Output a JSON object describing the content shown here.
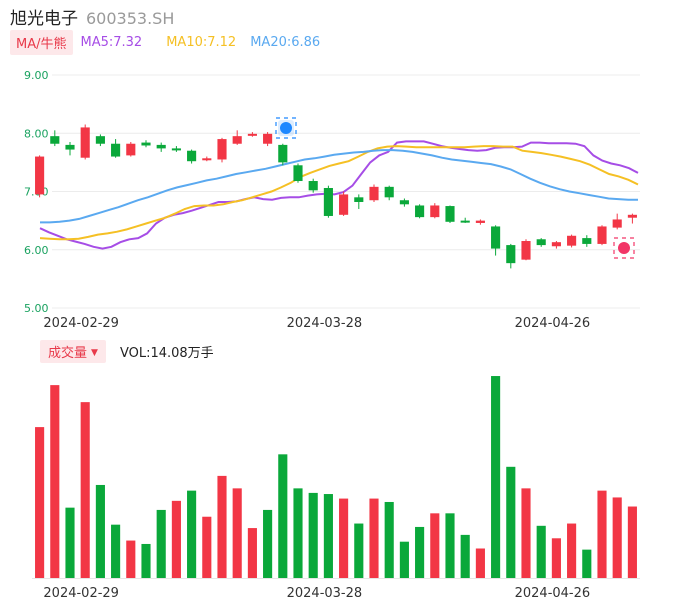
{
  "header": {
    "name": "旭光电子",
    "code": "600353.SH"
  },
  "legend": {
    "ma_label": "MA/牛熊",
    "ma5": "MA5:7.32",
    "ma10": "MA10:7.12",
    "ma20": "MA20:6.86"
  },
  "volume_header": {
    "label": "成交量",
    "vol": "VOL:14.08万手"
  },
  "colors": {
    "up": "#f23645",
    "down": "#0aa83a",
    "ma5": "#a64de6",
    "ma10": "#f5c024",
    "ma20": "#5aa9f0",
    "axis_text": "#1aa260"
  },
  "chart_data": [
    {
      "type": "candlestick",
      "ylim": [
        5.0,
        9.0
      ],
      "y_ticks": [
        "9.00",
        "8.00",
        "7.00",
        "6.00",
        "5.00"
      ],
      "x_ticks": [
        "2024-02-29",
        "2024-03-28",
        "2024-04-26"
      ],
      "candles": [
        {
          "o": 6.95,
          "c": 7.6,
          "h": 7.62,
          "l": 6.9
        },
        {
          "o": 7.95,
          "c": 7.82,
          "h": 8.05,
          "l": 7.78
        },
        {
          "o": 7.8,
          "c": 7.72,
          "h": 7.85,
          "l": 7.62
        },
        {
          "o": 7.58,
          "c": 8.1,
          "h": 8.15,
          "l": 7.55
        },
        {
          "o": 7.95,
          "c": 7.82,
          "h": 7.98,
          "l": 7.78
        },
        {
          "o": 7.82,
          "c": 7.6,
          "h": 7.9,
          "l": 7.58
        },
        {
          "o": 7.62,
          "c": 7.82,
          "h": 7.85,
          "l": 7.6
        },
        {
          "o": 7.84,
          "c": 7.79,
          "h": 7.88,
          "l": 7.76
        },
        {
          "o": 7.8,
          "c": 7.74,
          "h": 7.84,
          "l": 7.68
        },
        {
          "o": 7.74,
          "c": 7.73,
          "h": 7.78,
          "l": 7.68
        },
        {
          "o": 7.7,
          "c": 7.52,
          "h": 7.72,
          "l": 7.48
        },
        {
          "o": 7.56,
          "c": 7.57,
          "h": 7.6,
          "l": 7.52
        },
        {
          "o": 7.55,
          "c": 7.9,
          "h": 7.92,
          "l": 7.5
        },
        {
          "o": 7.82,
          "c": 7.95,
          "h": 8.05,
          "l": 7.8
        },
        {
          "o": 7.98,
          "c": 7.99,
          "h": 8.02,
          "l": 7.94
        },
        {
          "o": 7.82,
          "c": 7.99,
          "h": 8.02,
          "l": 7.78
        },
        {
          "o": 7.8,
          "c": 7.5,
          "h": 7.82,
          "l": 7.45
        },
        {
          "o": 7.45,
          "c": 7.18,
          "h": 7.48,
          "l": 7.15
        },
        {
          "o": 7.18,
          "c": 7.02,
          "h": 7.22,
          "l": 6.98
        },
        {
          "o": 7.06,
          "c": 6.58,
          "h": 7.1,
          "l": 6.55
        },
        {
          "o": 6.6,
          "c": 6.95,
          "h": 7.0,
          "l": 6.58
        },
        {
          "o": 6.9,
          "c": 6.82,
          "h": 6.95,
          "l": 6.7
        },
        {
          "o": 6.85,
          "c": 7.08,
          "h": 7.12,
          "l": 6.82
        },
        {
          "o": 7.08,
          "c": 6.9,
          "h": 7.1,
          "l": 6.85
        },
        {
          "o": 6.85,
          "c": 6.78,
          "h": 6.88,
          "l": 6.74
        },
        {
          "o": 6.76,
          "c": 6.56,
          "h": 6.78,
          "l": 6.54
        },
        {
          "o": 6.56,
          "c": 6.76,
          "h": 6.8,
          "l": 6.54
        },
        {
          "o": 6.75,
          "c": 6.48,
          "h": 6.76,
          "l": 6.46
        },
        {
          "o": 6.5,
          "c": 6.49,
          "h": 6.55,
          "l": 6.46
        },
        {
          "o": 6.46,
          "c": 6.5,
          "h": 6.52,
          "l": 6.43
        },
        {
          "o": 6.4,
          "c": 6.02,
          "h": 6.42,
          "l": 5.9
        },
        {
          "o": 6.08,
          "c": 5.77,
          "h": 6.1,
          "l": 5.68
        },
        {
          "o": 5.83,
          "c": 6.15,
          "h": 6.18,
          "l": 5.82
        },
        {
          "o": 6.18,
          "c": 6.08,
          "h": 6.2,
          "l": 6.05
        },
        {
          "o": 6.06,
          "c": 6.13,
          "h": 6.15,
          "l": 6.02
        },
        {
          "o": 6.07,
          "c": 6.24,
          "h": 6.26,
          "l": 6.04
        },
        {
          "o": 6.2,
          "c": 6.1,
          "h": 6.25,
          "l": 6.05
        },
        {
          "o": 6.1,
          "c": 6.4,
          "h": 6.42,
          "l": 6.08
        },
        {
          "o": 6.38,
          "c": 6.52,
          "h": 6.62,
          "l": 6.35
        },
        {
          "o": 6.55,
          "c": 6.6,
          "h": 6.62,
          "l": 6.45
        }
      ],
      "series": [
        {
          "name": "MA5",
          "values": [
            6.37,
            6.3,
            6.24,
            6.18,
            6.14,
            6.1,
            6.05,
            6.02,
            6.05,
            6.13,
            6.18,
            6.2,
            6.28,
            6.45,
            6.55,
            6.6,
            6.63,
            6.67,
            6.72,
            6.77,
            6.82,
            6.82,
            6.83,
            6.87,
            6.9,
            6.87,
            6.86,
            6.89,
            6.9,
            6.9,
            6.93,
            6.95,
            6.96,
            6.95,
            6.99,
            7.1,
            7.3,
            7.5,
            7.62,
            7.68,
            7.84,
            7.86,
            7.86,
            7.86,
            7.82,
            7.78,
            7.75,
            7.73,
            7.71,
            7.7,
            7.71,
            7.75,
            7.76,
            7.76,
            7.77,
            7.84,
            7.84,
            7.83,
            7.83,
            7.83,
            7.82,
            7.78,
            7.62,
            7.53,
            7.48,
            7.45,
            7.4,
            7.32
          ]
        },
        {
          "name": "MA10",
          "values": [
            6.2,
            6.19,
            6.18,
            6.18,
            6.19,
            6.22,
            6.26,
            6.28,
            6.31,
            6.35,
            6.4,
            6.45,
            6.5,
            6.55,
            6.62,
            6.7,
            6.75,
            6.76,
            6.76,
            6.78,
            6.82,
            6.85,
            6.9,
            6.95,
            7.0,
            7.07,
            7.15,
            7.25,
            7.32,
            7.38,
            7.44,
            7.48,
            7.52,
            7.6,
            7.68,
            7.74,
            7.77,
            7.78,
            7.77,
            7.76,
            7.76,
            7.76,
            7.76,
            7.76,
            7.76,
            7.77,
            7.78,
            7.78,
            7.77,
            7.77,
            7.7,
            7.68,
            7.66,
            7.63,
            7.6,
            7.56,
            7.52,
            7.46,
            7.38,
            7.3,
            7.26,
            7.2,
            7.12
          ]
        },
        {
          "name": "MA20",
          "values": [
            6.47,
            6.47,
            6.48,
            6.5,
            6.53,
            6.58,
            6.63,
            6.68,
            6.73,
            6.79,
            6.85,
            6.9,
            6.96,
            7.02,
            7.07,
            7.11,
            7.15,
            7.19,
            7.22,
            7.26,
            7.3,
            7.33,
            7.36,
            7.39,
            7.43,
            7.47,
            7.51,
            7.55,
            7.57,
            7.6,
            7.63,
            7.65,
            7.67,
            7.68,
            7.7,
            7.71,
            7.71,
            7.7,
            7.68,
            7.65,
            7.62,
            7.58,
            7.55,
            7.53,
            7.51,
            7.49,
            7.47,
            7.43,
            7.38,
            7.3,
            7.22,
            7.15,
            7.09,
            7.04,
            7.0,
            6.97,
            6.94,
            6.91,
            6.88,
            6.87,
            6.86,
            6.86
          ]
        }
      ]
    },
    {
      "type": "bar",
      "title": "成交量",
      "values": [
        133,
        170,
        62,
        155,
        82,
        47,
        33,
        30,
        60,
        68,
        77,
        54,
        90,
        79,
        44,
        60,
        109,
        79,
        75,
        74,
        70,
        48,
        70,
        67,
        32,
        45,
        57,
        57,
        38,
        26,
        178,
        98,
        79,
        46,
        35,
        48,
        25,
        77,
        71,
        63
      ],
      "directions": [
        "up",
        "up",
        "down",
        "up",
        "down",
        "down",
        "up",
        "down",
        "down",
        "up",
        "down",
        "up",
        "up",
        "up",
        "up",
        "down",
        "down",
        "down",
        "down",
        "down",
        "up",
        "down",
        "up",
        "down",
        "down",
        "down",
        "up",
        "down",
        "down",
        "up",
        "down",
        "down",
        "up",
        "down",
        "up",
        "up",
        "down",
        "up",
        "up",
        "up"
      ]
    }
  ]
}
